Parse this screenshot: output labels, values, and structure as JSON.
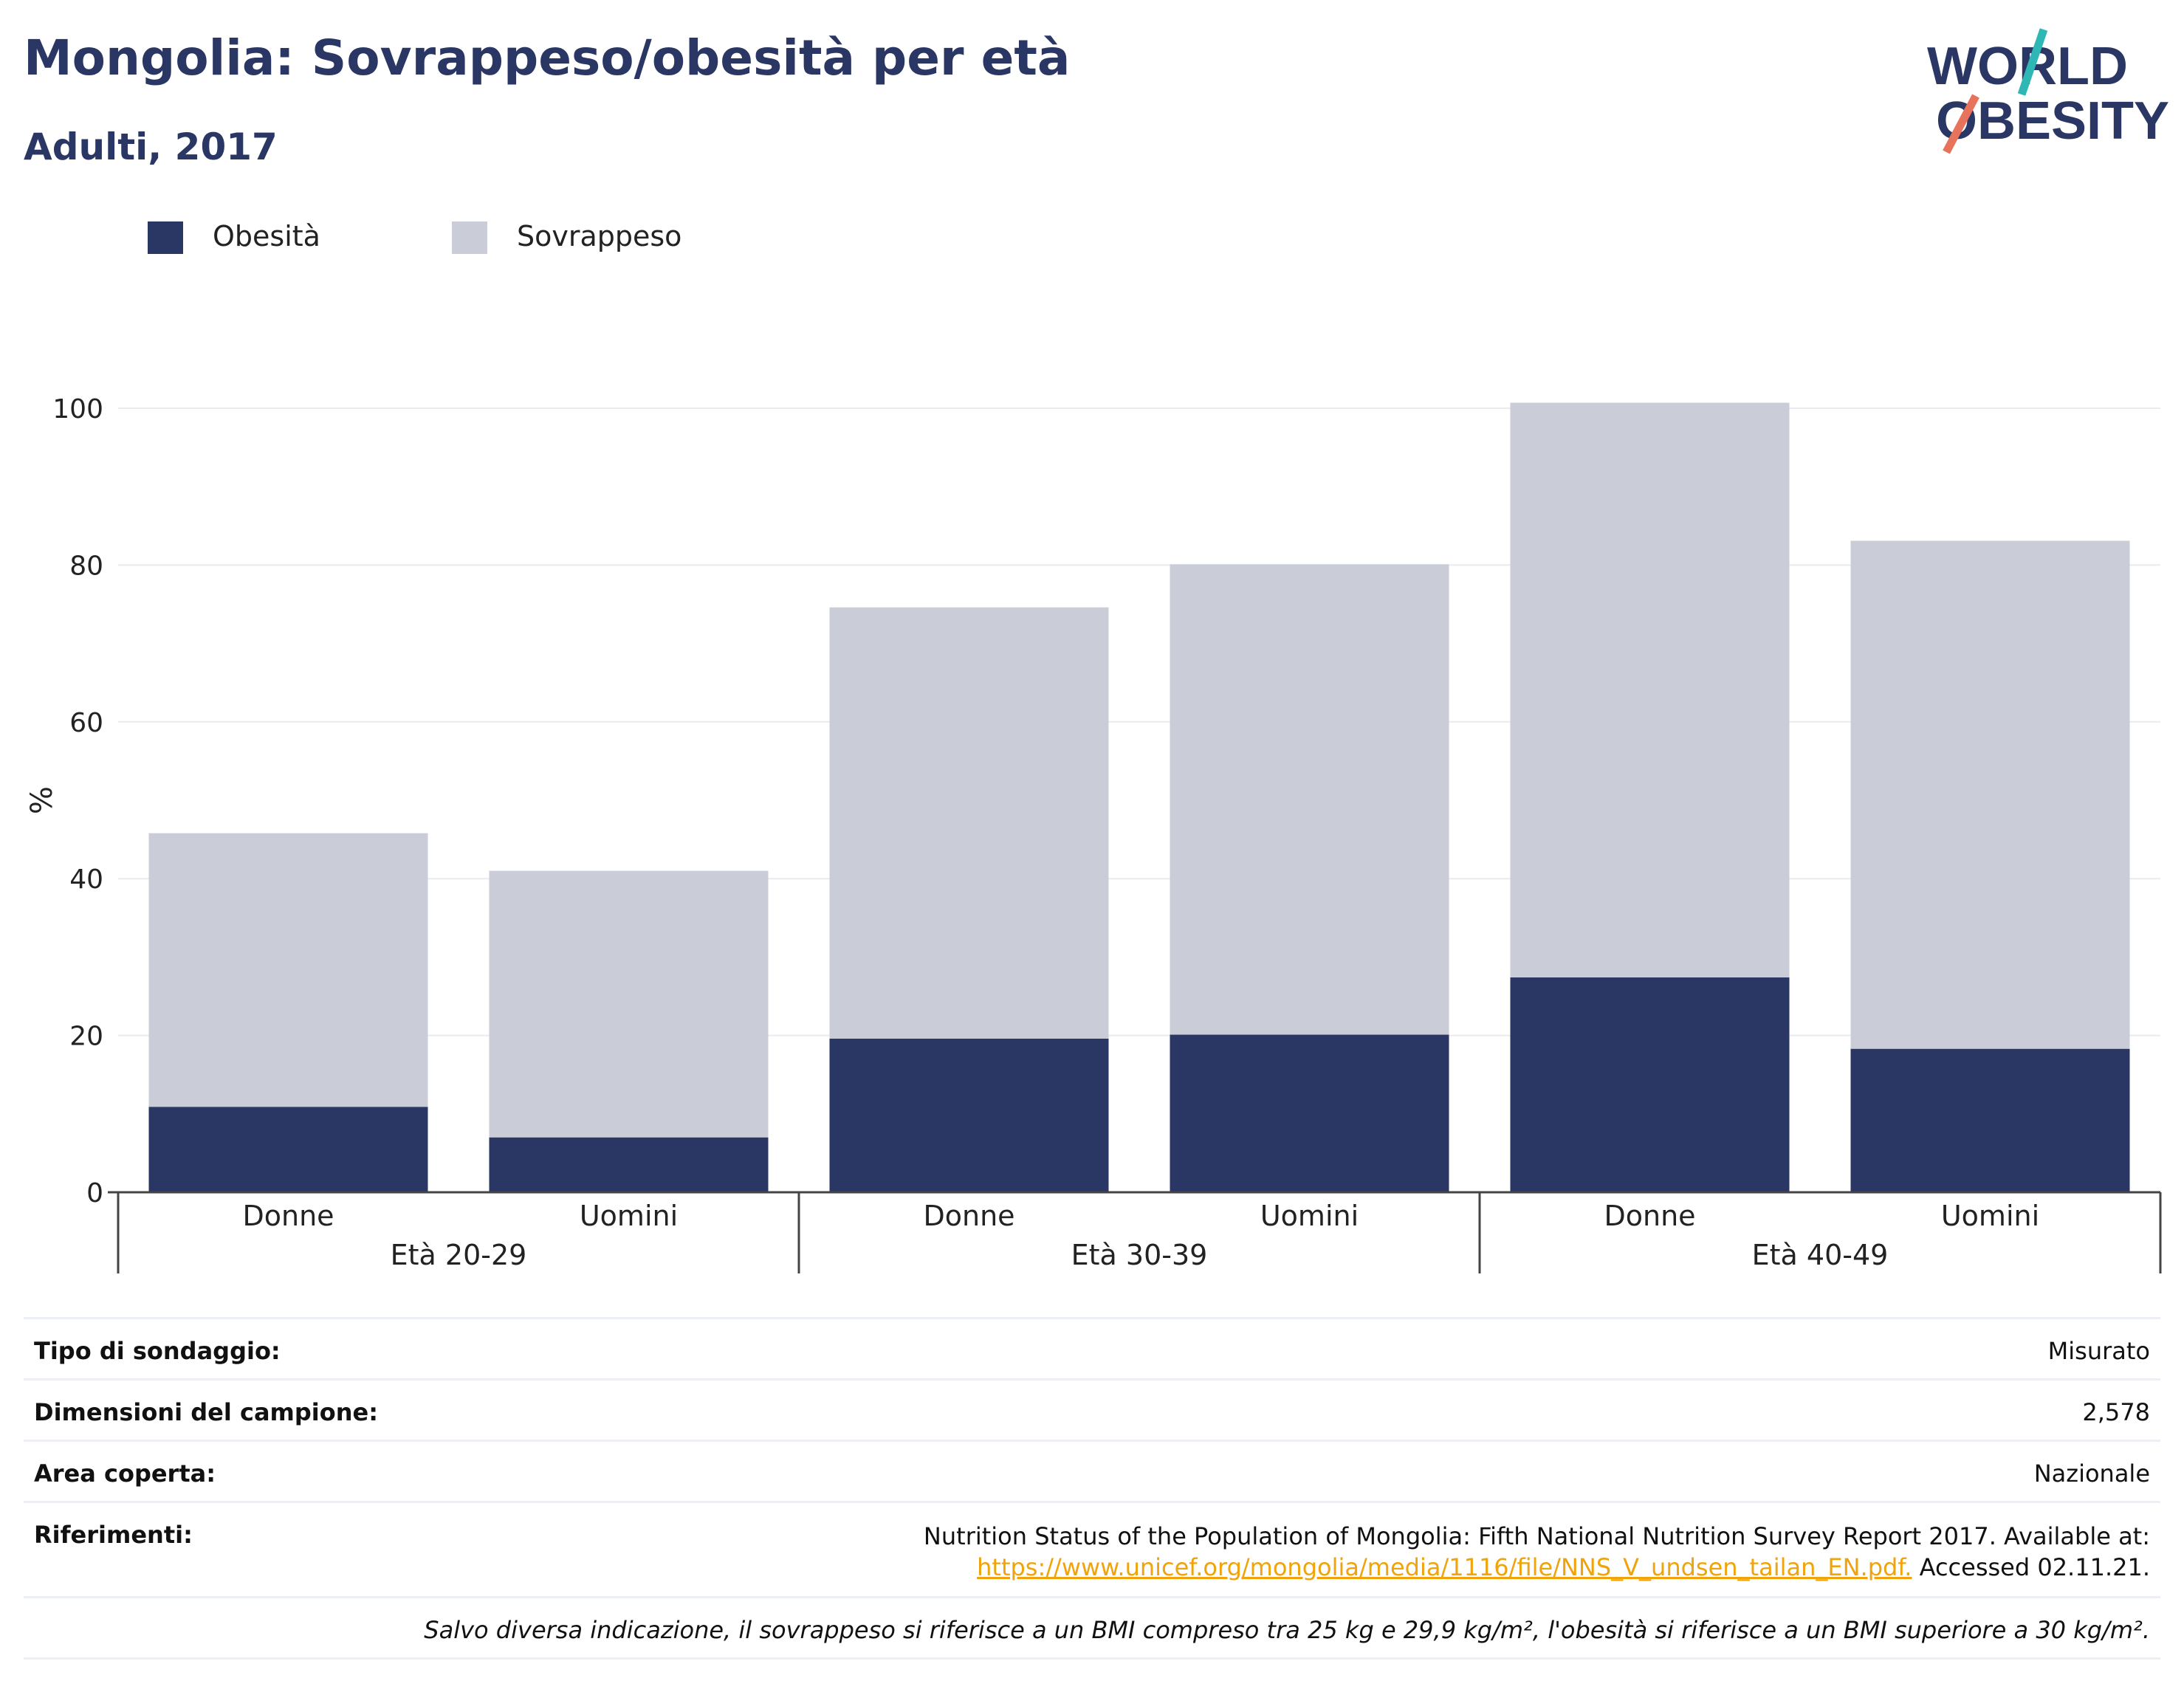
{
  "header": {
    "title": "Mongolia: Sovrappeso/obesità per età",
    "subtitle": "Adulti, 2017"
  },
  "logo": {
    "line1": "WORLD",
    "line2": "OBESITY",
    "icon": "world-obesity-logo"
  },
  "colors": {
    "obesity": "#2a3663",
    "overweight": "#cacdd8",
    "title": "#2a3663",
    "link": "#f0a30a",
    "logo_teal": "#2fb7b5",
    "logo_coral": "#e8735c"
  },
  "chart_data": {
    "type": "bar",
    "stacked": true,
    "ylabel": "%",
    "ylim": [
      0,
      100
    ],
    "yticks": [
      0,
      20,
      40,
      60,
      80,
      100
    ],
    "grid": true,
    "legend_position": "top-left",
    "groups": [
      {
        "label": "Età 20-29",
        "categories": [
          "Donne",
          "Uomini"
        ]
      },
      {
        "label": "Età 30-39",
        "categories": [
          "Donne",
          "Uomini"
        ]
      },
      {
        "label": "Età 40-49",
        "categories": [
          "Donne",
          "Uomini"
        ]
      }
    ],
    "series": [
      {
        "name": "Obesità",
        "values": [
          10.9,
          7.0,
          19.6,
          20.1,
          27.4,
          18.3
        ]
      },
      {
        "name": "Sovrappeso",
        "values": [
          34.9,
          34.0,
          55.0,
          60.0,
          73.3,
          64.8
        ]
      }
    ]
  },
  "info": {
    "survey_type_label": "Tipo di sondaggio:",
    "survey_type_value": "Misurato",
    "sample_size_label": "Dimensioni del campione:",
    "sample_size_value": "2,578",
    "area_label": "Area coperta:",
    "area_value": "Nazionale",
    "references_label": "Riferimenti:",
    "references_text": "Nutrition Status of the Population of Mongolia: Fifth National Nutrition Survey Report 2017. Available at:",
    "references_link": "https://www.unicef.org/mongolia/media/1116/file/NNS_V_undsen_tailan_EN.pdf.",
    "references_accessed": " Accessed 02.11.21.",
    "note": "Salvo diversa indicazione, il sovrappeso si riferisce a un BMI compreso tra 25 kg e 29,9 kg/m², l'obesità si riferisce a un BMI superiore a 30 kg/m²."
  }
}
